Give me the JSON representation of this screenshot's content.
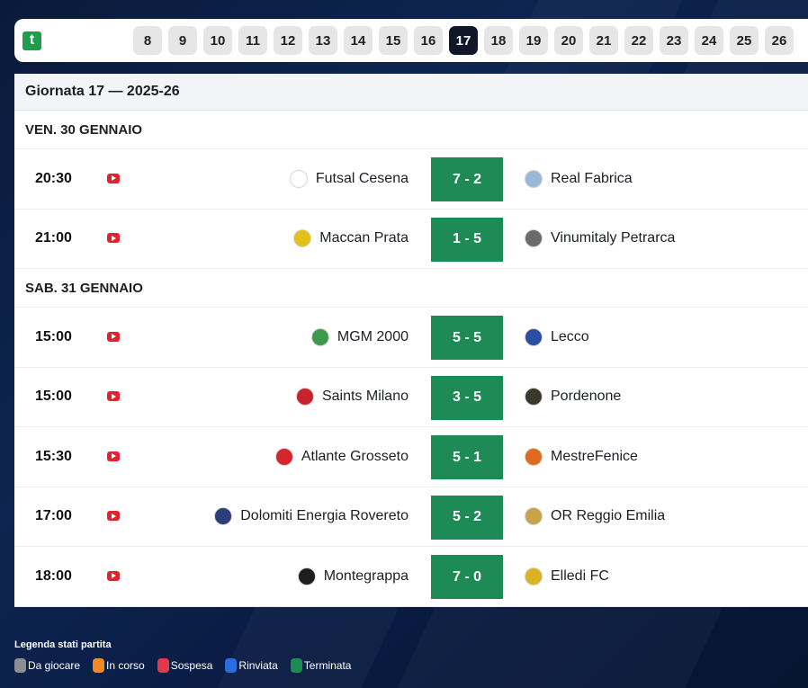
{
  "rounds": {
    "logo_text": "t",
    "items": [
      "8",
      "9",
      "10",
      "11",
      "12",
      "13",
      "14",
      "15",
      "16",
      "17",
      "18",
      "19",
      "20",
      "21",
      "22",
      "23",
      "24",
      "25",
      "26"
    ],
    "active": "17"
  },
  "panel": {
    "title": "Giornata 17 — 2025-26"
  },
  "days": [
    {
      "label": "VEN. 30 GENNAIO",
      "matches": [
        {
          "time": "20:30",
          "home": "Futsal Cesena",
          "score": "7 - 2",
          "away": "Real Fabrica",
          "home_crest": "#ffffff",
          "away_crest": "#9bb8d8"
        },
        {
          "time": "21:00",
          "home": "Maccan Prata",
          "score": "1 - 5",
          "away": "Vinumitaly Petrarca",
          "home_crest": "#e2c21a",
          "away_crest": "#6b6b6b"
        }
      ]
    },
    {
      "label": "SAB. 31 GENNAIO",
      "matches": [
        {
          "time": "15:00",
          "home": "MGM 2000",
          "score": "5 - 5",
          "away": "Lecco",
          "home_crest": "#3c9a4a",
          "away_crest": "#2b4fa0"
        },
        {
          "time": "15:00",
          "home": "Saints Milano",
          "score": "3 - 5",
          "away": "Pordenone",
          "home_crest": "#c8232a",
          "away_crest": "#3a3a2a"
        },
        {
          "time": "15:30",
          "home": "Atlante Grosseto",
          "score": "5 - 1",
          "away": "MestreFenice",
          "home_crest": "#d6262b",
          "away_crest": "#e06a1f"
        },
        {
          "time": "17:00",
          "home": "Dolomiti Energia Rovereto",
          "score": "5 - 2",
          "away": "OR Reggio Emilia",
          "home_crest": "#2a3f7a",
          "away_crest": "#c9a24a"
        },
        {
          "time": "18:00",
          "home": "Montegrappa",
          "score": "7 - 0",
          "away": "Elledi FC",
          "home_crest": "#1e1e1e",
          "away_crest": "#d9b420"
        }
      ]
    }
  ],
  "legend": {
    "title": "Legenda stati partita",
    "items": [
      {
        "label": "Da giocare",
        "color": "#8a8f96"
      },
      {
        "label": "In corso",
        "color": "#f08a24"
      },
      {
        "label": "Sospesa",
        "color": "#e0394a"
      },
      {
        "label": "Rinviata",
        "color": "#2a6de0"
      },
      {
        "label": "Terminata",
        "color": "#1e8a55"
      }
    ]
  },
  "colors": {
    "score_bg": "#1e8a55",
    "active_round_bg": "#0f1729",
    "youtube": "#e3232b"
  },
  "icons": {
    "logo": "brand-t-icon",
    "video": "youtube-icon"
  }
}
